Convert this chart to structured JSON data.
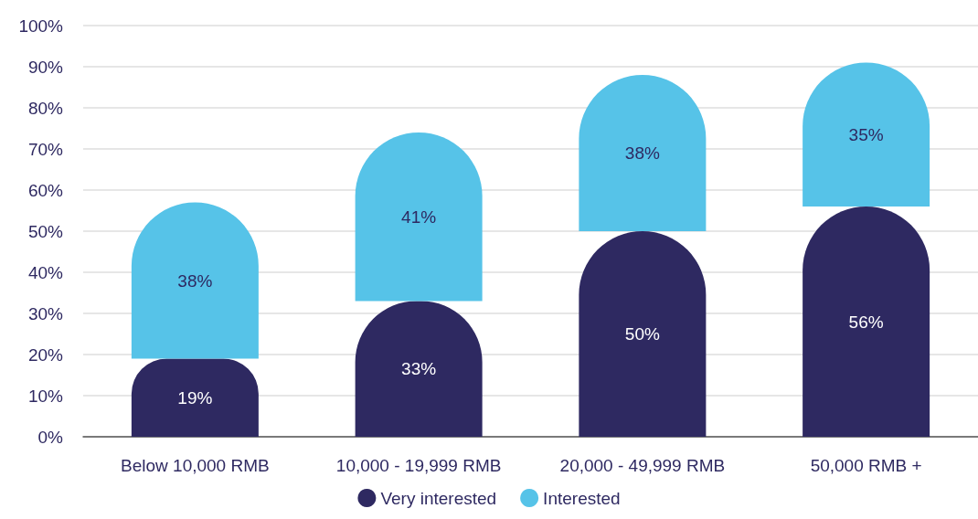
{
  "chart_data": {
    "type": "bar",
    "stacked": true,
    "categories": [
      "Below 10,000 RMB",
      "10,000 - 19,999 RMB",
      "20,000 - 49,999 RMB",
      "50,000 RMB +"
    ],
    "series": [
      {
        "name": "Very interested",
        "color": "#2e2961",
        "values": [
          19,
          33,
          50,
          56
        ],
        "value_labels": [
          "19%",
          "33%",
          "50%",
          "56%"
        ]
      },
      {
        "name": "Interested",
        "color": "#56c3e8",
        "values": [
          38,
          41,
          38,
          35
        ],
        "value_labels": [
          "38%",
          "41%",
          "38%",
          "35%"
        ]
      }
    ],
    "ylim": [
      0,
      100
    ],
    "yticks": [
      {
        "value": 0,
        "label": "0%"
      },
      {
        "value": 10,
        "label": "10%"
      },
      {
        "value": 20,
        "label": "20%"
      },
      {
        "value": 30,
        "label": "30%"
      },
      {
        "value": 40,
        "label": "40%"
      },
      {
        "value": 50,
        "label": "50%"
      },
      {
        "value": 60,
        "label": "60%"
      },
      {
        "value": 70,
        "label": "70%"
      },
      {
        "value": 80,
        "label": "80%"
      },
      {
        "value": 90,
        "label": "90%"
      },
      {
        "value": 100,
        "label": "100%"
      }
    ],
    "grid": "y",
    "legend": "bottom"
  }
}
